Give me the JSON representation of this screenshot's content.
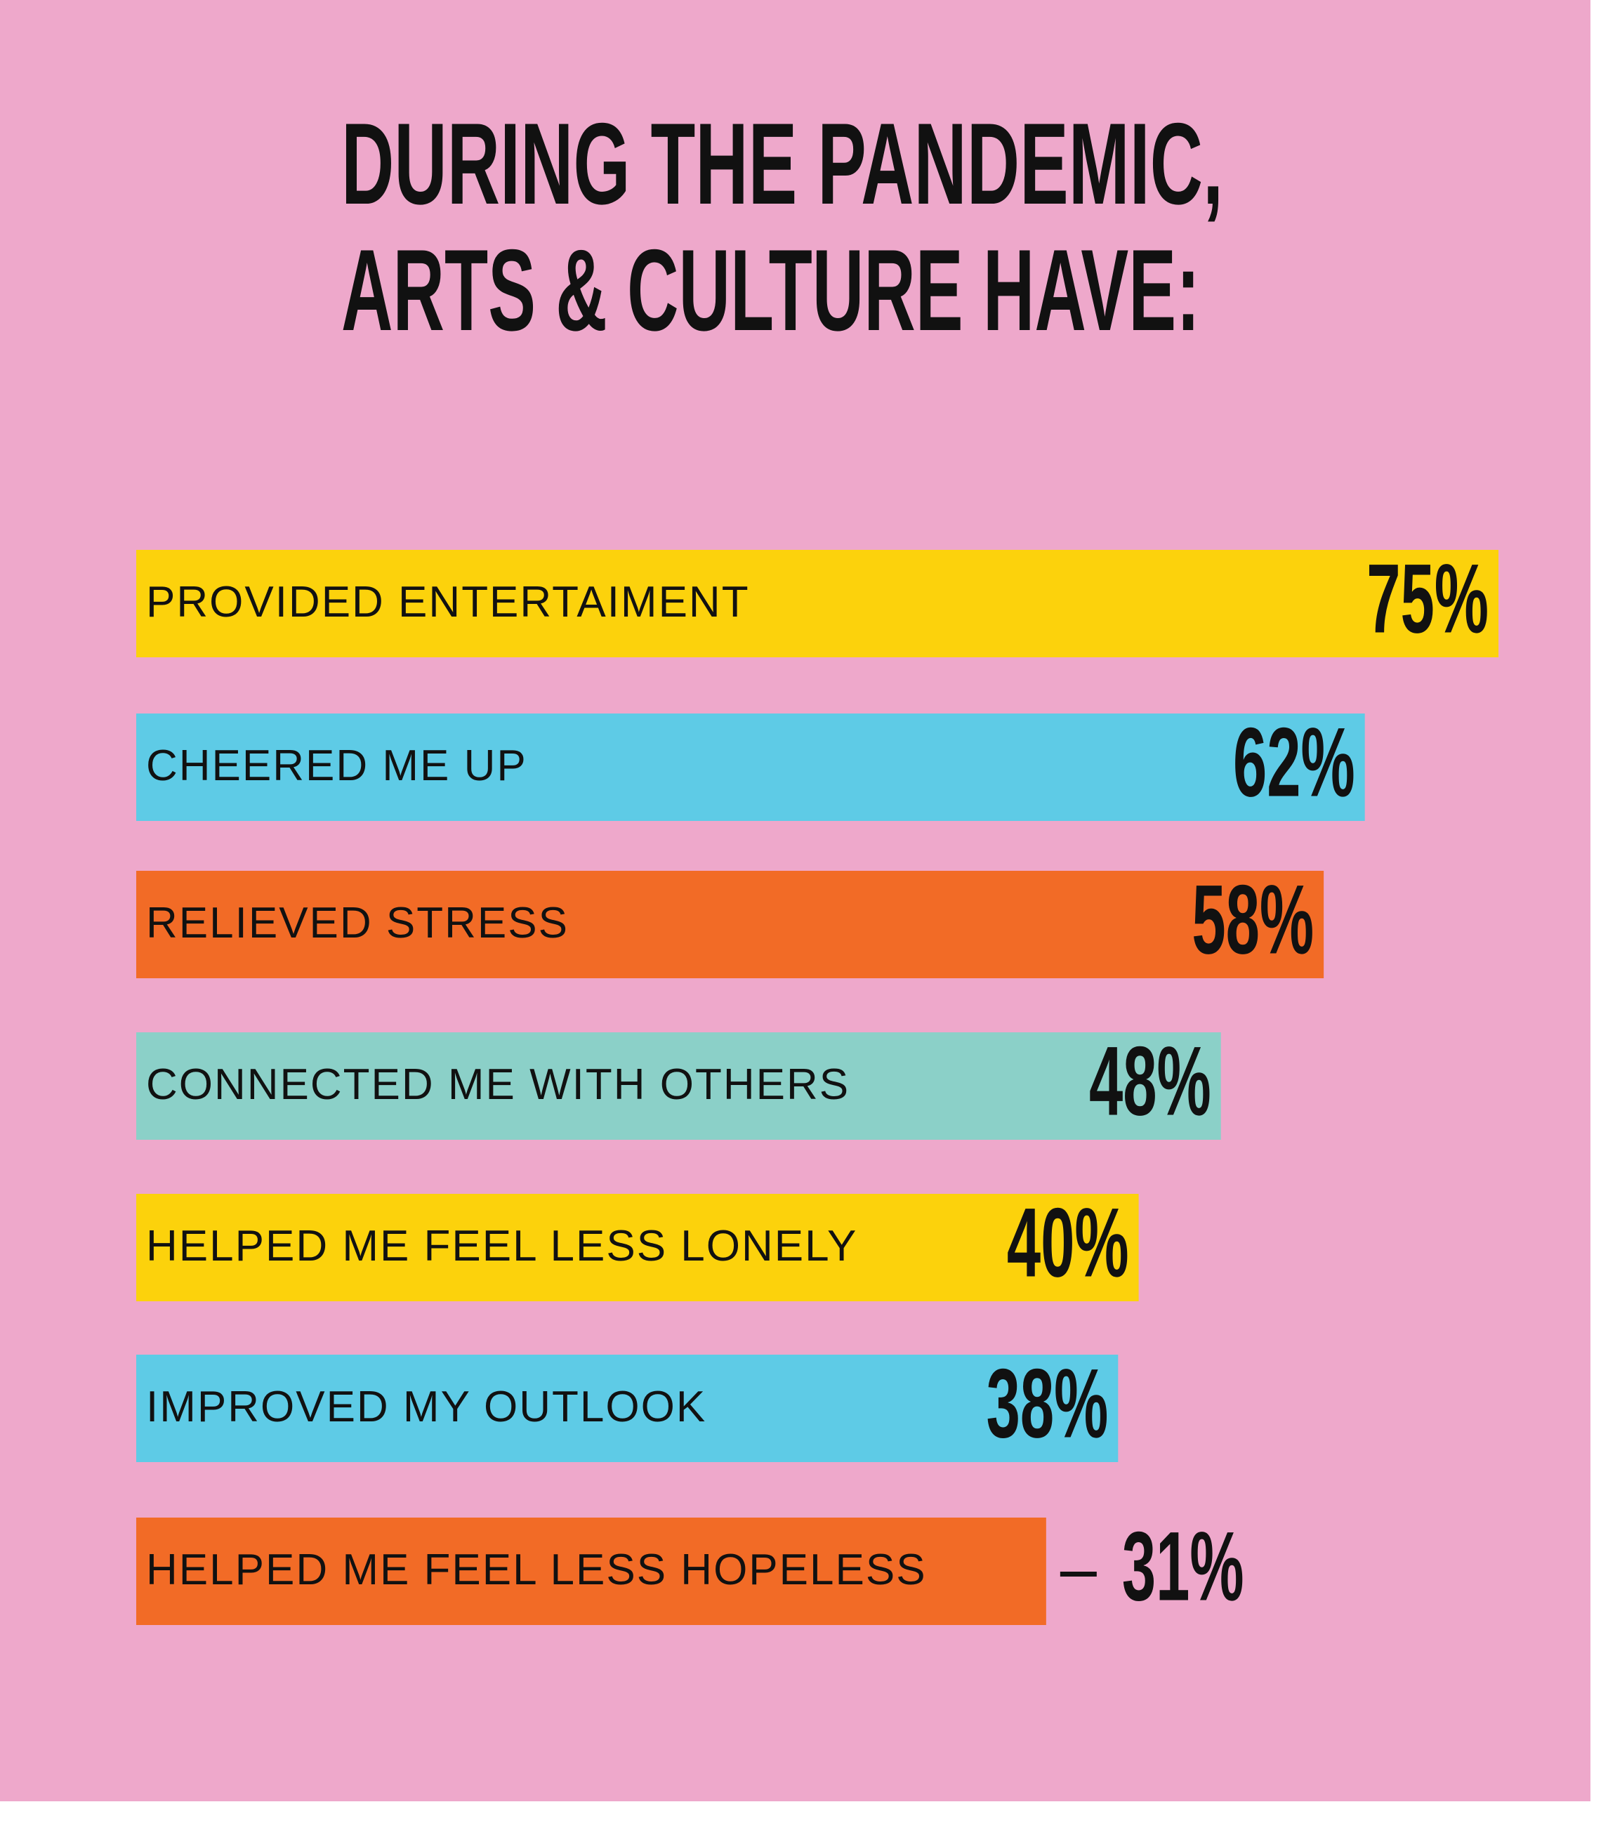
{
  "chart_data": {
    "type": "bar",
    "title": [
      "DURING THE PANDEMIC,",
      "ARTS & CULTURE HAVE:"
    ],
    "categories": [
      "PROVIDED ENTERTAIMENT",
      "CHEERED ME UP",
      "RELIEVED STRESS",
      "CONNECTED ME WITH OTHERS",
      "HELPED ME FEEL LESS LONELY",
      "IMPROVED MY OUTLOOK",
      "HELPED ME FEEL LESS HOPELESS"
    ],
    "values": [
      75,
      62,
      58,
      48,
      40,
      38,
      31
    ],
    "value_labels": [
      "75%",
      "62%",
      "58%",
      "48%",
      "40%",
      "38%",
      "31%"
    ],
    "colors": [
      "#fcd20c",
      "#5ecbe6",
      "#f26b26",
      "#8bd0c8",
      "#fcd20c",
      "#5ecbe6",
      "#f26b26"
    ]
  }
}
